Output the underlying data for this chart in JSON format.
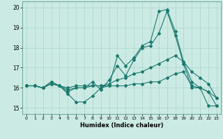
{
  "xlabel": "Humidex (Indice chaleur)",
  "background_color": "#cceae4",
  "grid_color": "#aad4cc",
  "line_color": "#1a7a6e",
  "xlim": [
    -0.5,
    23.5
  ],
  "ylim": [
    14.7,
    20.3
  ],
  "yticks": [
    15,
    16,
    17,
    18,
    19,
    20
  ],
  "xticks": [
    0,
    1,
    2,
    3,
    4,
    5,
    6,
    7,
    8,
    9,
    10,
    11,
    12,
    13,
    14,
    15,
    16,
    17,
    18,
    19,
    20,
    21,
    22,
    23
  ],
  "series": [
    [
      16.1,
      16.1,
      16.0,
      16.3,
      16.1,
      15.7,
      15.3,
      15.3,
      15.6,
      16.0,
      16.1,
      17.6,
      17.1,
      17.5,
      18.1,
      18.3,
      19.8,
      19.9,
      18.8,
      17.3,
      16.3,
      16.0,
      15.1,
      15.1
    ],
    [
      16.1,
      16.1,
      16.0,
      16.3,
      16.1,
      15.8,
      16.0,
      16.0,
      16.3,
      15.9,
      16.4,
      17.1,
      16.6,
      17.4,
      18.0,
      18.1,
      18.7,
      19.8,
      18.6,
      17.2,
      16.0,
      16.0,
      15.8,
      15.1
    ],
    [
      16.1,
      16.1,
      16.0,
      16.2,
      16.1,
      16.0,
      16.1,
      16.1,
      16.1,
      16.1,
      16.2,
      16.4,
      16.5,
      16.7,
      16.8,
      17.0,
      17.2,
      17.4,
      17.6,
      17.3,
      16.8,
      16.5,
      16.2,
      15.5
    ],
    [
      16.1,
      16.1,
      16.0,
      16.2,
      16.1,
      15.9,
      16.0,
      16.0,
      16.1,
      16.1,
      16.1,
      16.1,
      16.1,
      16.2,
      16.2,
      16.3,
      16.3,
      16.5,
      16.7,
      16.8,
      16.1,
      16.0,
      15.8,
      15.5
    ]
  ]
}
